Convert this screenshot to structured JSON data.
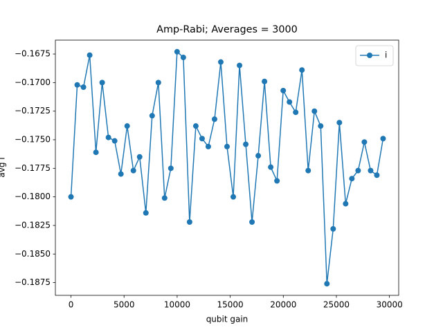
{
  "chart_data": {
    "type": "line",
    "title": "Amp-Rabi; Averages = 3000",
    "xlabel": "qubit gain",
    "ylabel": "avg i",
    "x": [
      0,
      588,
      1176,
      1764,
      2352,
      2940,
      3528,
      4116,
      4704,
      5292,
      5880,
      6468,
      7056,
      7644,
      8232,
      8820,
      9408,
      9996,
      10584,
      11172,
      11760,
      12348,
      12936,
      13524,
      14112,
      14700,
      15288,
      15876,
      16464,
      17052,
      17640,
      18228,
      18816,
      19404,
      19992,
      20580,
      21168,
      21756,
      22344,
      22932,
      23520,
      24108,
      24696,
      25284,
      25872,
      26460,
      27048,
      27636,
      28224,
      28812,
      29400
    ],
    "series": [
      {
        "name": "i",
        "color": "#1f77b4",
        "marker": "circle",
        "values": [
          -0.18,
          -0.1702,
          -0.1704,
          -0.1676,
          -0.1761,
          -0.17,
          -0.1748,
          -0.1751,
          -0.178,
          -0.1738,
          -0.1777,
          -0.1765,
          -0.1814,
          -0.1729,
          -0.17,
          -0.1801,
          -0.1775,
          -0.1673,
          -0.1678,
          -0.1822,
          -0.1738,
          -0.1749,
          -0.1756,
          -0.1732,
          -0.1682,
          -0.1756,
          -0.18,
          -0.1685,
          -0.1754,
          -0.1822,
          -0.1764,
          -0.1699,
          -0.1774,
          -0.1786,
          -0.1707,
          -0.1717,
          -0.1726,
          -0.1689,
          -0.1777,
          -0.1725,
          -0.1738,
          -0.1876,
          -0.1828,
          -0.1735,
          -0.1806,
          -0.1784,
          -0.1777,
          -0.1752,
          -0.1777,
          -0.1781,
          -0.1749
        ]
      }
    ],
    "xlim": [
      -1470,
      30870
    ],
    "xticks": [
      0,
      5000,
      10000,
      15000,
      20000,
      25000,
      30000
    ],
    "ylim": [
      -0.188615,
      -0.166285
    ],
    "yticks": [
      {
        "value": -0.1875,
        "label": "−0.1875"
      },
      {
        "value": -0.185,
        "label": "−0.1850"
      },
      {
        "value": -0.1825,
        "label": "−0.1825"
      },
      {
        "value": -0.18,
        "label": "−0.1800"
      },
      {
        "value": -0.1775,
        "label": "−0.1775"
      },
      {
        "value": -0.175,
        "label": "−0.1750"
      },
      {
        "value": -0.1725,
        "label": "−0.1725"
      },
      {
        "value": -0.17,
        "label": "−0.1700"
      },
      {
        "value": -0.1675,
        "label": "−0.1675"
      }
    ],
    "grid": false,
    "legend": "upper right"
  }
}
